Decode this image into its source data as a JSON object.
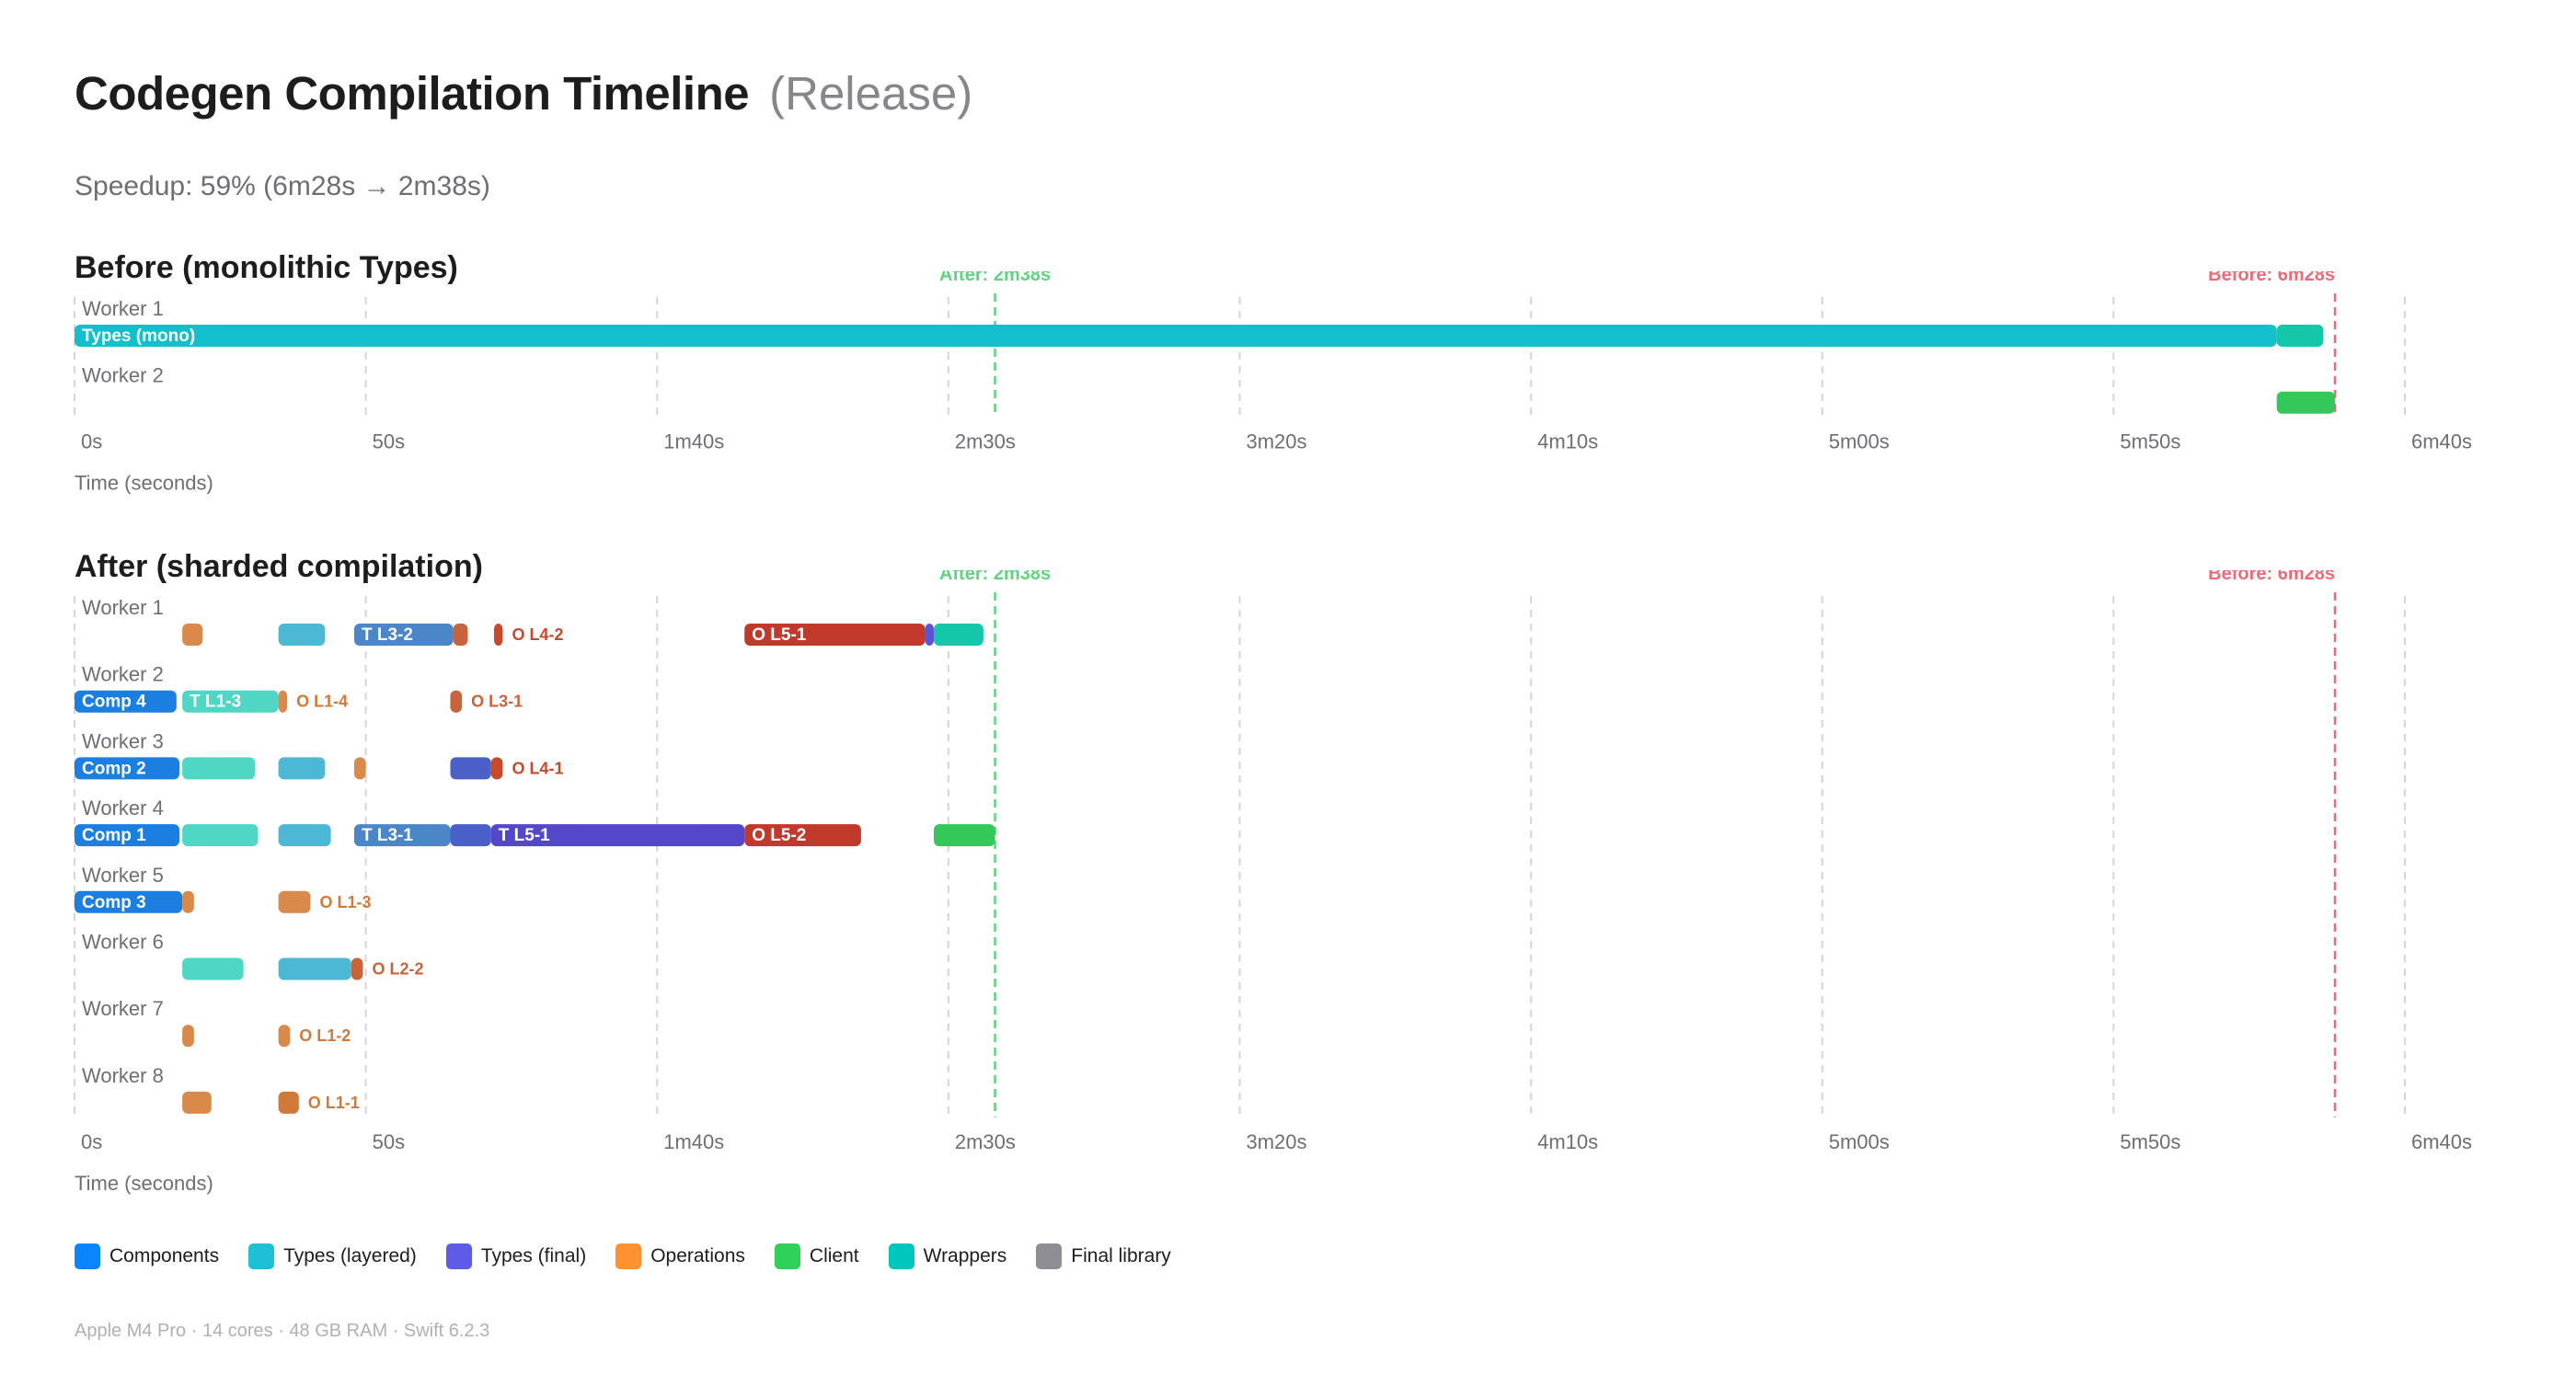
{
  "page": {
    "title": "Codegen Compilation Timeline",
    "subtitle": "(Release)",
    "speedup": "Speedup: 59% (6m28s → 2m38s)",
    "footer": "Apple M4 Pro · 14 cores · 48 GB RAM · Swift 6.2.3"
  },
  "colors": {
    "Components": "#0a84ff",
    "Types (layered)": "#1fbfd6",
    "Types (final)": "#5e5ce6",
    "Operations": "#ff9230",
    "Client": "#30d158",
    "Wrappers": "#00c7be",
    "Final library": "#8e8e93",
    "after_line": "#5fd37f",
    "before_line": "#ee6a78"
  },
  "legend": [
    {
      "label": "Components",
      "color": "#0a84ff"
    },
    {
      "label": "Types (layered)",
      "color": "#1fbfd6"
    },
    {
      "label": "Types (final)",
      "color": "#5e5ce6"
    },
    {
      "label": "Operations",
      "color": "#ff9230"
    },
    {
      "label": "Client",
      "color": "#30d158"
    },
    {
      "label": "Wrappers",
      "color": "#00c7be"
    },
    {
      "label": "Final library",
      "color": "#8e8e93"
    }
  ],
  "chart_data": [
    {
      "type": "gantt",
      "title": "Before (monolithic Types)",
      "xlabel": "Time (seconds)",
      "xlim": [
        0,
        400
      ],
      "x_ticks": [
        0,
        50,
        100,
        150,
        200,
        250,
        300,
        350,
        400
      ],
      "x_tick_labels": [
        "0s",
        "50s",
        "1m40s",
        "2m30s",
        "3m20s",
        "4m10s",
        "5m00s",
        "5m50s",
        "6m40s"
      ],
      "reference_lines": [
        {
          "label": "After: 2m38s",
          "x": 158,
          "color": "#5fd37f"
        },
        {
          "label": "Before: 6m28s",
          "x": 388,
          "color": "#ee6a78"
        }
      ],
      "workers": [
        {
          "name": "Worker 1",
          "tasks": [
            {
              "start": 0,
              "end": 378,
              "color": "#13bfcc",
              "label": "Types (mono)",
              "label_pos": "inside"
            },
            {
              "start": 378,
              "end": 386,
              "color": "#14c7a8"
            }
          ]
        },
        {
          "name": "Worker 2",
          "tasks": [
            {
              "start": 378,
              "end": 388,
              "color": "#34c759"
            }
          ]
        }
      ]
    },
    {
      "type": "gantt",
      "title": "After (sharded compilation)",
      "xlabel": "Time (seconds)",
      "xlim": [
        0,
        400
      ],
      "x_ticks": [
        0,
        50,
        100,
        150,
        200,
        250,
        300,
        350,
        400
      ],
      "x_tick_labels": [
        "0s",
        "50s",
        "1m40s",
        "2m30s",
        "3m20s",
        "4m10s",
        "5m00s",
        "5m50s",
        "6m40s"
      ],
      "reference_lines": [
        {
          "label": "After: 2m38s",
          "x": 158,
          "color": "#5fd37f"
        },
        {
          "label": "Before: 6m28s",
          "x": 388,
          "color": "#ee6a78"
        }
      ],
      "workers": [
        {
          "name": "Worker 1",
          "tasks": [
            {
              "start": 18.5,
              "end": 22,
              "color": "#d98a4a"
            },
            {
              "start": 35,
              "end": 43,
              "color": "#4db8d4"
            },
            {
              "start": 48,
              "end": 65,
              "color": "#4a86c8",
              "label": "T L3-2",
              "label_pos": "inside"
            },
            {
              "start": 65,
              "end": 67.5,
              "color": "#c8643c"
            },
            {
              "start": 72,
              "end": 73.5,
              "color": "#c84a2a",
              "label": "O L4-2",
              "label_pos": "outside",
              "label_color": "#c84a2a"
            },
            {
              "start": 115,
              "end": 146,
              "color": "#c0392b",
              "label": "O L5-1",
              "label_pos": "inside"
            },
            {
              "start": 146,
              "end": 147.5,
              "color": "#5b55d6"
            },
            {
              "start": 147.5,
              "end": 156,
              "color": "#14c7a8"
            }
          ]
        },
        {
          "name": "Worker 2",
          "tasks": [
            {
              "start": 0,
              "end": 17.5,
              "color": "#1a7fe0",
              "label": "Comp 4",
              "label_pos": "inside"
            },
            {
              "start": 18.5,
              "end": 35,
              "color": "#4fd6c4",
              "label": "T L1-3",
              "label_pos": "inside"
            },
            {
              "start": 35,
              "end": 36.5,
              "color": "#d98a4a",
              "label": "O L1-4",
              "label_pos": "outside",
              "label_color": "#d07a3a"
            },
            {
              "start": 64.5,
              "end": 66.5,
              "color": "#c8643c",
              "label": "O L3-1",
              "label_pos": "outside",
              "label_color": "#c8643c"
            }
          ]
        },
        {
          "name": "Worker 3",
          "tasks": [
            {
              "start": 0,
              "end": 18,
              "color": "#1a7fe0",
              "label": "Comp 2",
              "label_pos": "inside"
            },
            {
              "start": 18.5,
              "end": 31,
              "color": "#4fd6c4"
            },
            {
              "start": 35,
              "end": 43,
              "color": "#4db8d4"
            },
            {
              "start": 48,
              "end": 50,
              "color": "#d98a4a"
            },
            {
              "start": 64.5,
              "end": 71.5,
              "color": "#4a60c8"
            },
            {
              "start": 71.5,
              "end": 73.5,
              "color": "#c84a2a",
              "label": "O L4-1",
              "label_pos": "outside",
              "label_color": "#c84a2a"
            }
          ]
        },
        {
          "name": "Worker 4",
          "tasks": [
            {
              "start": 0,
              "end": 18,
              "color": "#1a7fe0",
              "label": "Comp 1",
              "label_pos": "inside"
            },
            {
              "start": 18.5,
              "end": 31.5,
              "color": "#4fd6c4"
            },
            {
              "start": 35,
              "end": 44,
              "color": "#4db8d4"
            },
            {
              "start": 48,
              "end": 64.5,
              "color": "#4a86c8",
              "label": "T L3-1",
              "label_pos": "inside"
            },
            {
              "start": 64.5,
              "end": 71.5,
              "color": "#4a60c8"
            },
            {
              "start": 71.5,
              "end": 115,
              "color": "#5548c8",
              "label": "T L5-1",
              "label_pos": "inside"
            },
            {
              "start": 115,
              "end": 135,
              "color": "#c0392b",
              "label": "O L5-2",
              "label_pos": "inside"
            },
            {
              "start": 147.5,
              "end": 158,
              "color": "#34c759"
            }
          ]
        },
        {
          "name": "Worker 5",
          "tasks": [
            {
              "start": 0,
              "end": 18.5,
              "color": "#1a7fe0",
              "label": "Comp 3",
              "label_pos": "inside"
            },
            {
              "start": 18.5,
              "end": 20.5,
              "color": "#d98a4a"
            },
            {
              "start": 35,
              "end": 40.5,
              "color": "#d98a4a",
              "label": "O L1-3",
              "label_pos": "outside",
              "label_color": "#d07a3a"
            }
          ]
        },
        {
          "name": "Worker 6",
          "tasks": [
            {
              "start": 18.5,
              "end": 29,
              "color": "#4fd6c4"
            },
            {
              "start": 35,
              "end": 47.5,
              "color": "#4db8d4"
            },
            {
              "start": 47.5,
              "end": 49.5,
              "color": "#c8643c",
              "label": "O L2-2",
              "label_pos": "outside",
              "label_color": "#c8643c"
            }
          ]
        },
        {
          "name": "Worker 7",
          "tasks": [
            {
              "start": 18.5,
              "end": 20.5,
              "color": "#d98a4a"
            },
            {
              "start": 35,
              "end": 37,
              "color": "#d98a4a",
              "label": "O L1-2",
              "label_pos": "outside",
              "label_color": "#d07a3a"
            }
          ]
        },
        {
          "name": "Worker 8",
          "tasks": [
            {
              "start": 18.5,
              "end": 23.5,
              "color": "#d98a4a"
            },
            {
              "start": 35,
              "end": 38.5,
              "color": "#d07a3a",
              "label": "O L1-1",
              "label_pos": "outside",
              "label_color": "#d07a3a"
            }
          ]
        }
      ]
    }
  ]
}
